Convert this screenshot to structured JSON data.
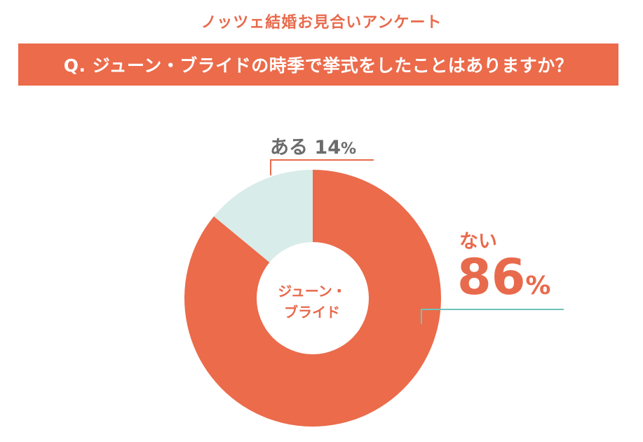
{
  "header": {
    "survey_title": "ノッツェ結婚お見合いアンケート",
    "question": "Q. ジューン・ブライドの時季で挙式をしたことはありますか？"
  },
  "colors": {
    "accent": "#eb6b4b",
    "yes_slice": "#d8ece9",
    "leader_yes": "#e86a4c",
    "leader_no": "#6fc2b9",
    "text_gray": "#6b6b6b"
  },
  "center_label": {
    "line1": "ジューン・",
    "line2": "ブライド"
  },
  "labels": {
    "yes": {
      "category": "ある",
      "value": "14",
      "unit": "%"
    },
    "no": {
      "category": "ない",
      "value": "86",
      "unit": "%"
    }
  },
  "chart_data": {
    "type": "pie",
    "donut": true,
    "categories": [
      "ない",
      "ある"
    ],
    "values": [
      86,
      14
    ],
    "unit": "%",
    "title": "Q. ジューン・ブライドの時季で挙式をしたことはありますか？"
  }
}
